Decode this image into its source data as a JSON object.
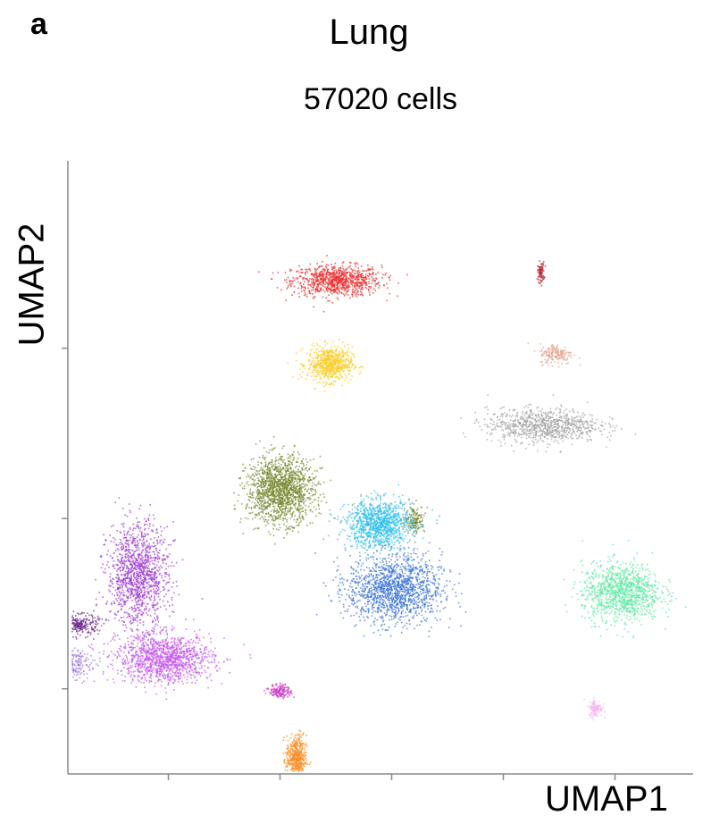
{
  "panel_letter": "a",
  "chart_data": {
    "type": "scatter",
    "title": "Lung",
    "subtitle": "57020 cells",
    "xlabel": "UMAP1",
    "ylabel": "UMAP2",
    "x_ticks": [
      1,
      2,
      3,
      4,
      5
    ],
    "y_ticks": [
      1,
      2,
      3
    ],
    "xlim": [
      0.1,
      5.7
    ],
    "ylim": [
      0.5,
      4.1
    ],
    "grid": false,
    "legend": "none",
    "clusters": [
      {
        "color": "#ec2d2d",
        "center": [
          2.5,
          3.4
        ],
        "spread": [
          0.4,
          0.09
        ],
        "n": 900
      },
      {
        "color": "#b81c2a",
        "center": [
          4.33,
          3.45
        ],
        "spread": [
          0.03,
          0.06
        ],
        "n": 80
      },
      {
        "color": "#f8cc25",
        "center": [
          2.44,
          2.91
        ],
        "spread": [
          0.2,
          0.1
        ],
        "n": 700
      },
      {
        "color": "#e5a48e",
        "center": [
          4.47,
          2.97
        ],
        "spread": [
          0.15,
          0.06
        ],
        "n": 180
      },
      {
        "color": "#a6a6a6",
        "center": [
          4.35,
          2.55
        ],
        "spread": [
          0.5,
          0.1
        ],
        "n": 900
      },
      {
        "color": "#7a8c36",
        "center": [
          2.0,
          2.17
        ],
        "spread": [
          0.3,
          0.19
        ],
        "n": 1600
      },
      {
        "color": "#7a8c36",
        "center": [
          3.2,
          2.0
        ],
        "spread": [
          0.09,
          0.08
        ],
        "n": 160
      },
      {
        "color": "#33c0ec",
        "center": [
          2.88,
          1.97
        ],
        "spread": [
          0.29,
          0.14
        ],
        "n": 1100
      },
      {
        "color": "#3d74d9",
        "center": [
          3.02,
          1.59
        ],
        "spread": [
          0.42,
          0.2
        ],
        "n": 1500
      },
      {
        "color": "#5ce8a0",
        "center": [
          5.05,
          1.57
        ],
        "spread": [
          0.35,
          0.17
        ],
        "n": 1100
      },
      {
        "color": "#9f3ed4",
        "center": [
          0.72,
          1.67
        ],
        "spread": [
          0.27,
          0.3
        ],
        "n": 1300
      },
      {
        "color": "#c65af0",
        "center": [
          0.96,
          1.18
        ],
        "spread": [
          0.43,
          0.14
        ],
        "n": 1300
      },
      {
        "color": "#6d2a8c",
        "center": [
          0.2,
          1.38
        ],
        "spread": [
          0.17,
          0.06
        ],
        "n": 260
      },
      {
        "color": "#a07ae0",
        "center": [
          0.04,
          1.15
        ],
        "spread": [
          0.25,
          0.09
        ],
        "n": 500
      },
      {
        "color": "#ce3ac6",
        "center": [
          2.0,
          0.99
        ],
        "spread": [
          0.1,
          0.04
        ],
        "n": 160
      },
      {
        "color": "#fb8c20",
        "center": [
          2.14,
          0.59
        ],
        "spread": [
          0.09,
          0.14
        ],
        "n": 500
      },
      {
        "color": "#f4b6f0",
        "center": [
          4.82,
          0.89
        ],
        "spread": [
          0.06,
          0.05
        ],
        "n": 120
      }
    ]
  }
}
